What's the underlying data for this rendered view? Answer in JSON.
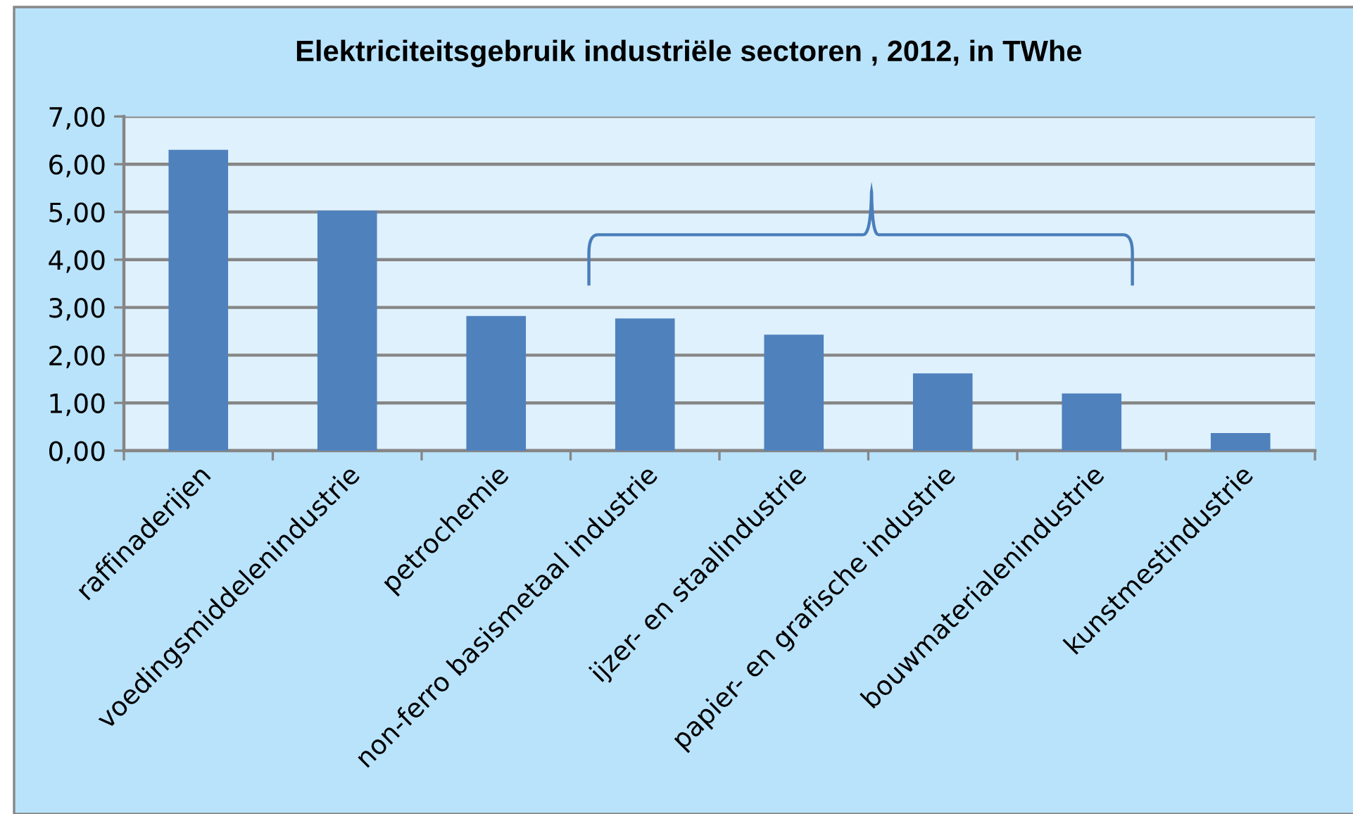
{
  "chart_data": {
    "type": "bar",
    "title": "Elektriciteitsgebruik industriële sectoren , 2012, in TWhe",
    "categories": [
      "raffinaderijen",
      "voedingsmiddelenindustrie",
      "petrochemie",
      "non-ferro basismetaal industrie",
      "ijzer- en staalindustrie",
      "papier- en grafische industrie",
      "bouwmaterialenindustrie",
      "kunstmestindustrie"
    ],
    "values": [
      6.3,
      5.03,
      2.82,
      2.77,
      2.43,
      1.62,
      1.2,
      0.37
    ],
    "color": "#4f81bd",
    "ylim": [
      0,
      7
    ],
    "yticks": [
      {
        "value": 0,
        "label": "0,00"
      },
      {
        "value": 1,
        "label": "1,00"
      },
      {
        "value": 2,
        "label": "2,00"
      },
      {
        "value": 3,
        "label": "3,00"
      },
      {
        "value": 4,
        "label": "4,00"
      },
      {
        "value": 5,
        "label": "5,00"
      },
      {
        "value": 6,
        "label": "6,00"
      },
      {
        "value": 7,
        "label": "7,00"
      }
    ],
    "grid": "y"
  }
}
